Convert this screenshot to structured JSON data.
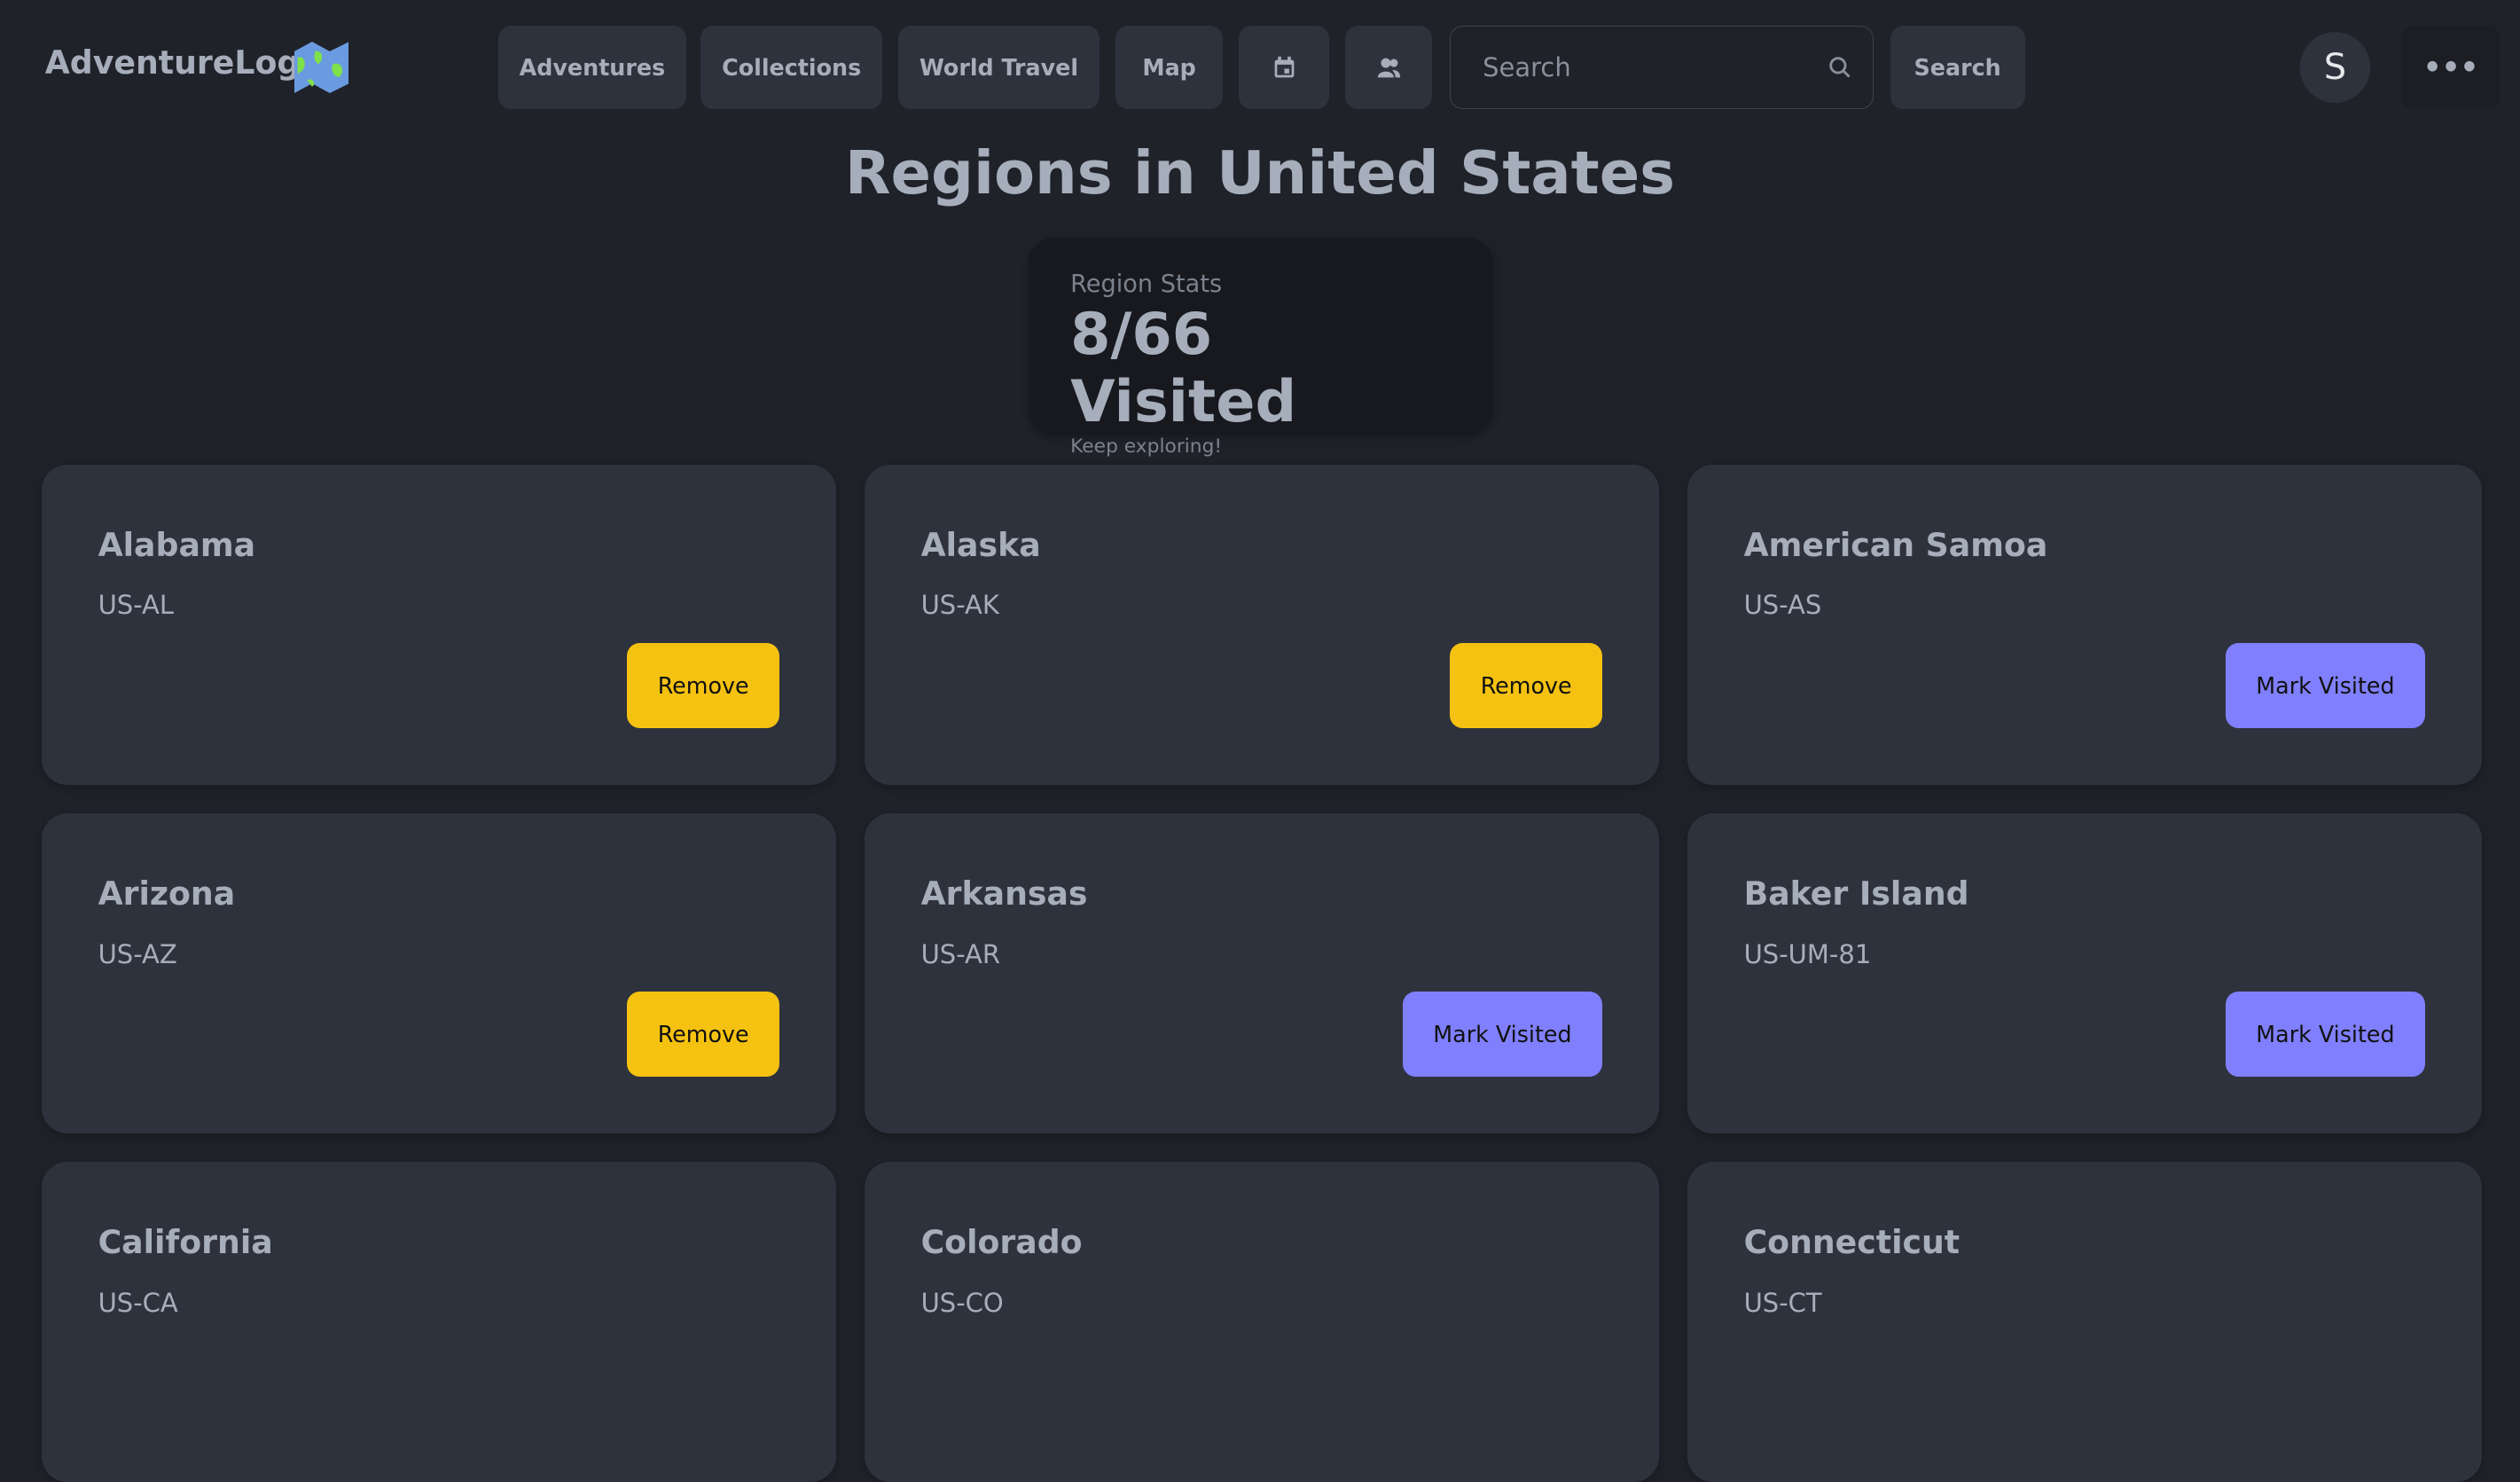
{
  "nav": {
    "brand": "AdventureLog",
    "items": [
      "Adventures",
      "Collections",
      "World Travel",
      "Map"
    ],
    "calendar_icon": "calendar-icon",
    "users_icon": "users-icon",
    "search_placeholder": "Search",
    "search_button": "Search",
    "avatar_letter": "S",
    "more_icon": "ellipsis-icon"
  },
  "page": {
    "title": "Regions in United States",
    "stats": {
      "label": "Region Stats",
      "value": "8/66 Visited",
      "desc": "Keep exploring!"
    }
  },
  "colors": {
    "remove": "#f5c211",
    "mark_visited": "#8080ff",
    "background": "#1f2229",
    "card": "#2e323c"
  },
  "regions": [
    {
      "name": "Alabama",
      "code": "US-AL",
      "action": "Remove",
      "visited": true
    },
    {
      "name": "Alaska",
      "code": "US-AK",
      "action": "Remove",
      "visited": true
    },
    {
      "name": "American Samoa",
      "code": "US-AS",
      "action": "Mark Visited",
      "visited": false
    },
    {
      "name": "Arizona",
      "code": "US-AZ",
      "action": "Remove",
      "visited": true
    },
    {
      "name": "Arkansas",
      "code": "US-AR",
      "action": "Mark Visited",
      "visited": false
    },
    {
      "name": "Baker Island",
      "code": "US-UM-81",
      "action": "Mark Visited",
      "visited": false
    },
    {
      "name": "California",
      "code": "US-CA",
      "action": "",
      "visited": null
    },
    {
      "name": "Colorado",
      "code": "US-CO",
      "action": "",
      "visited": null
    },
    {
      "name": "Connecticut",
      "code": "US-CT",
      "action": "",
      "visited": null
    }
  ]
}
